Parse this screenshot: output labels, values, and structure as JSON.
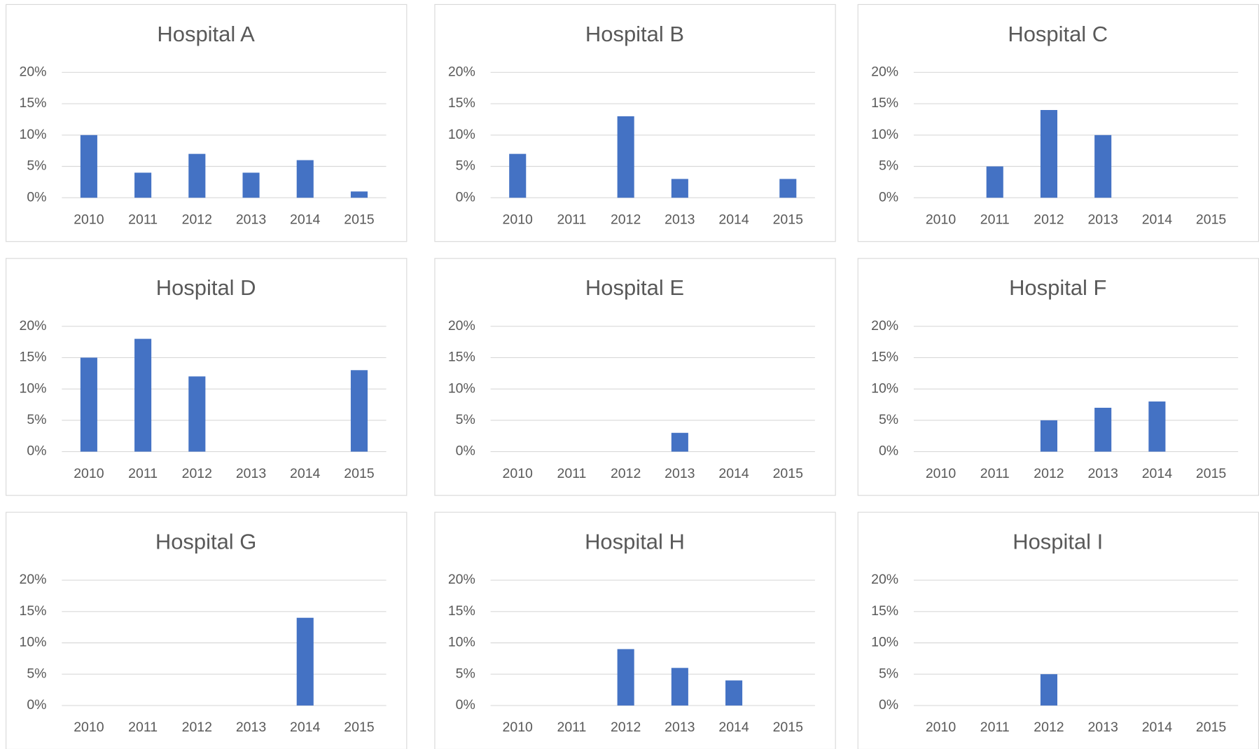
{
  "chart_data": [
    {
      "type": "bar",
      "title": "Hospital A",
      "categories": [
        "2010",
        "2011",
        "2012",
        "2013",
        "2014",
        "2015"
      ],
      "values": [
        10,
        4,
        7,
        4,
        6,
        1
      ],
      "color": "#4472c4",
      "ylim": [
        0,
        20
      ],
      "yticks": [
        {
          "value": 0,
          "label": "0%"
        },
        {
          "value": 5,
          "label": "5%"
        },
        {
          "value": 10,
          "label": "10%"
        },
        {
          "value": 15,
          "label": "15%"
        },
        {
          "value": 20,
          "label": "20%"
        }
      ],
      "grid": true
    },
    {
      "type": "bar",
      "title": "Hospital B",
      "categories": [
        "2010",
        "2011",
        "2012",
        "2013",
        "2014",
        "2015"
      ],
      "values": [
        7,
        0,
        13,
        3,
        0,
        3
      ],
      "color": "#4472c4",
      "ylim": [
        0,
        20
      ],
      "yticks": [
        {
          "value": 0,
          "label": "0%"
        },
        {
          "value": 5,
          "label": "5%"
        },
        {
          "value": 10,
          "label": "10%"
        },
        {
          "value": 15,
          "label": "15%"
        },
        {
          "value": 20,
          "label": "20%"
        }
      ],
      "grid": true
    },
    {
      "type": "bar",
      "title": "Hospital C",
      "categories": [
        "2010",
        "2011",
        "2012",
        "2013",
        "2014",
        "2015"
      ],
      "values": [
        0,
        5,
        14,
        10,
        0,
        0
      ],
      "color": "#4472c4",
      "ylim": [
        0,
        20
      ],
      "yticks": [
        {
          "value": 0,
          "label": "0%"
        },
        {
          "value": 5,
          "label": "5%"
        },
        {
          "value": 10,
          "label": "10%"
        },
        {
          "value": 15,
          "label": "15%"
        },
        {
          "value": 20,
          "label": "20%"
        }
      ],
      "grid": true
    },
    {
      "type": "bar",
      "title": "Hospital D",
      "categories": [
        "2010",
        "2011",
        "2012",
        "2013",
        "2014",
        "2015"
      ],
      "values": [
        15,
        18,
        12,
        0,
        0,
        13
      ],
      "color": "#4472c4",
      "ylim": [
        0,
        20
      ],
      "yticks": [
        {
          "value": 0,
          "label": "0%"
        },
        {
          "value": 5,
          "label": "5%"
        },
        {
          "value": 10,
          "label": "10%"
        },
        {
          "value": 15,
          "label": "15%"
        },
        {
          "value": 20,
          "label": "20%"
        }
      ],
      "grid": true
    },
    {
      "type": "bar",
      "title": "Hospital E",
      "categories": [
        "2010",
        "2011",
        "2012",
        "2013",
        "2014",
        "2015"
      ],
      "values": [
        0,
        0,
        0,
        3,
        0,
        0
      ],
      "color": "#4472c4",
      "ylim": [
        0,
        20
      ],
      "yticks": [
        {
          "value": 0,
          "label": "0%"
        },
        {
          "value": 5,
          "label": "5%"
        },
        {
          "value": 10,
          "label": "10%"
        },
        {
          "value": 15,
          "label": "15%"
        },
        {
          "value": 20,
          "label": "20%"
        }
      ],
      "grid": true
    },
    {
      "type": "bar",
      "title": "Hospital F",
      "categories": [
        "2010",
        "2011",
        "2012",
        "2013",
        "2014",
        "2015"
      ],
      "values": [
        0,
        0,
        5,
        7,
        8,
        0
      ],
      "color": "#4472c4",
      "ylim": [
        0,
        20
      ],
      "yticks": [
        {
          "value": 0,
          "label": "0%"
        },
        {
          "value": 5,
          "label": "5%"
        },
        {
          "value": 10,
          "label": "10%"
        },
        {
          "value": 15,
          "label": "15%"
        },
        {
          "value": 20,
          "label": "20%"
        }
      ],
      "grid": true
    },
    {
      "type": "bar",
      "title": "Hospital G",
      "categories": [
        "2010",
        "2011",
        "2012",
        "2013",
        "2014",
        "2015"
      ],
      "values": [
        0,
        0,
        0,
        0,
        14,
        0
      ],
      "color": "#4472c4",
      "ylim": [
        0,
        20
      ],
      "yticks": [
        {
          "value": 0,
          "label": "0%"
        },
        {
          "value": 5,
          "label": "5%"
        },
        {
          "value": 10,
          "label": "10%"
        },
        {
          "value": 15,
          "label": "15%"
        },
        {
          "value": 20,
          "label": "20%"
        }
      ],
      "grid": true
    },
    {
      "type": "bar",
      "title": "Hospital H",
      "categories": [
        "2010",
        "2011",
        "2012",
        "2013",
        "2014",
        "2015"
      ],
      "values": [
        0,
        0,
        9,
        6,
        4,
        0
      ],
      "color": "#4472c4",
      "ylim": [
        0,
        20
      ],
      "yticks": [
        {
          "value": 0,
          "label": "0%"
        },
        {
          "value": 5,
          "label": "5%"
        },
        {
          "value": 10,
          "label": "10%"
        },
        {
          "value": 15,
          "label": "15%"
        },
        {
          "value": 20,
          "label": "20%"
        }
      ],
      "grid": true
    },
    {
      "type": "bar",
      "title": "Hospital I",
      "categories": [
        "2010",
        "2011",
        "2012",
        "2013",
        "2014",
        "2015"
      ],
      "values": [
        0,
        0,
        5,
        0,
        0,
        0
      ],
      "color": "#4472c4",
      "ylim": [
        0,
        20
      ],
      "yticks": [
        {
          "value": 0,
          "label": "0%"
        },
        {
          "value": 5,
          "label": "5%"
        },
        {
          "value": 10,
          "label": "10%"
        },
        {
          "value": 15,
          "label": "15%"
        },
        {
          "value": 20,
          "label": "20%"
        }
      ],
      "grid": true
    }
  ]
}
